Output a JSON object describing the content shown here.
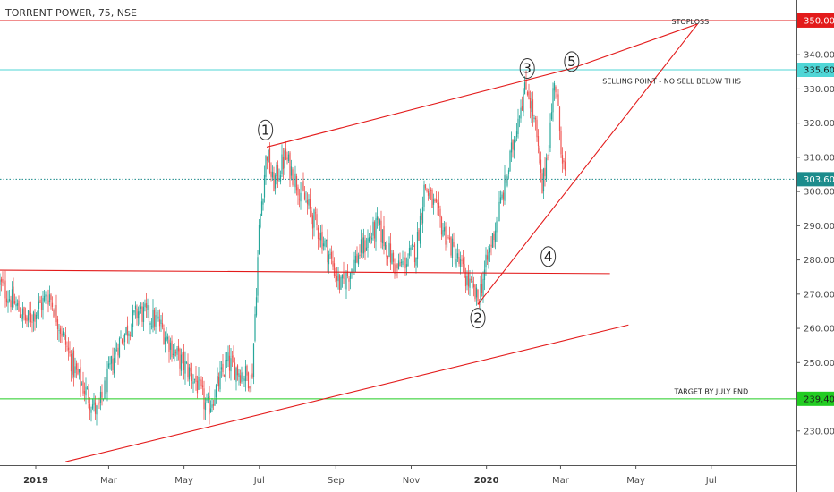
{
  "chart_data": {
    "type": "candlestick",
    "title": "TORRENT POWER, 75, NSE",
    "ylim": [
      220,
      356
    ],
    "y_ticks": [
      230,
      240,
      250,
      260,
      270,
      280,
      290,
      300,
      310,
      320,
      330,
      340,
      350
    ],
    "y_tick_labels": [
      "230.00",
      "240.00",
      "250.00",
      "260.00",
      "270.00",
      "280.00",
      "290.00",
      "300.00",
      "310.00",
      "320.00",
      "330.00",
      "340.00",
      "350.00"
    ],
    "x_start": "2018-12-03",
    "x_end": "2020-09-08",
    "x_ticks": [
      {
        "date": "2019-01-01",
        "label": "2019",
        "bold": true
      },
      {
        "date": "2019-03-01",
        "label": "Mar",
        "bold": false
      },
      {
        "date": "2019-05-01",
        "label": "May",
        "bold": false
      },
      {
        "date": "2019-07-01",
        "label": "Jul",
        "bold": false
      },
      {
        "date": "2019-09-01",
        "label": "Sep",
        "bold": false
      },
      {
        "date": "2019-11-01",
        "label": "Nov",
        "bold": false
      },
      {
        "date": "2020-01-01",
        "label": "2020",
        "bold": true
      },
      {
        "date": "2020-03-01",
        "label": "Mar",
        "bold": false
      },
      {
        "date": "2020-05-01",
        "label": "May",
        "bold": false
      },
      {
        "date": "2020-07-01",
        "label": "Jul",
        "bold": false
      }
    ],
    "price_path": [
      {
        "date": "2018-12-03",
        "close": 273
      },
      {
        "date": "2018-12-25",
        "close": 262
      },
      {
        "date": "2019-01-12",
        "close": 270
      },
      {
        "date": "2019-02-01",
        "close": 248
      },
      {
        "date": "2019-02-20",
        "close": 235
      },
      {
        "date": "2019-03-08",
        "close": 255
      },
      {
        "date": "2019-03-25",
        "close": 265
      },
      {
        "date": "2019-04-10",
        "close": 262
      },
      {
        "date": "2019-04-25",
        "close": 252
      },
      {
        "date": "2019-05-10",
        "close": 245
      },
      {
        "date": "2019-05-20",
        "close": 236
      },
      {
        "date": "2019-06-05",
        "close": 250
      },
      {
        "date": "2019-06-25",
        "close": 245
      },
      {
        "date": "2019-07-01",
        "close": 290
      },
      {
        "date": "2019-07-07",
        "close": 312
      },
      {
        "date": "2019-07-12",
        "close": 302
      },
      {
        "date": "2019-07-22",
        "close": 310
      },
      {
        "date": "2019-08-10",
        "close": 295
      },
      {
        "date": "2019-08-25",
        "close": 283
      },
      {
        "date": "2019-09-05",
        "close": 272
      },
      {
        "date": "2019-09-20",
        "close": 282
      },
      {
        "date": "2019-10-05",
        "close": 290
      },
      {
        "date": "2019-10-20",
        "close": 277
      },
      {
        "date": "2019-11-05",
        "close": 283
      },
      {
        "date": "2019-11-12",
        "close": 302
      },
      {
        "date": "2019-11-28",
        "close": 288
      },
      {
        "date": "2019-12-15",
        "close": 275
      },
      {
        "date": "2019-12-25",
        "close": 268
      },
      {
        "date": "2020-01-05",
        "close": 285
      },
      {
        "date": "2020-01-18",
        "close": 305
      },
      {
        "date": "2020-01-28",
        "close": 325
      },
      {
        "date": "2020-02-03",
        "close": 331
      },
      {
        "date": "2020-02-10",
        "close": 318
      },
      {
        "date": "2020-02-15",
        "close": 300
      },
      {
        "date": "2020-02-22",
        "close": 320
      },
      {
        "date": "2020-02-25",
        "close": 334
      },
      {
        "date": "2020-03-02",
        "close": 312
      },
      {
        "date": "2020-03-05",
        "close": 303.6
      }
    ],
    "horizontal_lines": [
      {
        "value": 350.0,
        "color": "#e31b1b",
        "label": "350.00",
        "label_bg": "#e31b1b"
      },
      {
        "value": 335.6,
        "color": "#4fd6d6",
        "label": "335.60",
        "label_bg": "#4fd6d6"
      },
      {
        "value": 303.6,
        "color": "#1c8c8c",
        "label": "303.60",
        "label_bg": "#1c8c8c",
        "dotted": true
      },
      {
        "value": 239.4,
        "color": "#22cc22",
        "label": "239.40",
        "label_bg": "#22cc22"
      }
    ],
    "trend_lines": [
      {
        "from": [
          "2019-07-07",
          313
        ],
        "to": [
          "2020-03-10",
          336
        ]
      },
      {
        "from": [
          "2019-12-25",
          267
        ],
        "to": [
          "2020-06-20",
          349
        ]
      },
      {
        "from": [
          "2020-03-10",
          336
        ],
        "to": [
          "2020-06-20",
          349
        ]
      },
      {
        "from": [
          "2018-12-03",
          277
        ],
        "to": [
          "2020-04-10",
          276
        ]
      },
      {
        "from": [
          "2019-01-25",
          221
        ],
        "to": [
          "2020-04-25",
          261
        ]
      }
    ],
    "wave_labels": [
      {
        "label": "1",
        "date": "2019-07-06",
        "value": 318
      },
      {
        "label": "2",
        "date": "2019-12-25",
        "value": 263
      },
      {
        "label": "3",
        "date": "2020-02-03",
        "value": 336
      },
      {
        "label": "4",
        "date": "2020-02-20",
        "value": 281
      },
      {
        "label": "5",
        "date": "2020-03-10",
        "value": 338
      }
    ],
    "annotations": [
      {
        "text": "STOPLOSS",
        "date": "2020-06-14",
        "value": 349
      },
      {
        "text": "SELLING POINT - NO SELL BELOW THIS",
        "date": "2020-05-30",
        "value": 331.5
      },
      {
        "text": "TARGET BY JULY END",
        "date": "2020-07-01",
        "value": 240.8
      }
    ],
    "colors": {
      "up": "#26a69a",
      "down": "#ef5350",
      "wick": "#555555",
      "trend": "#e31b1b"
    }
  }
}
